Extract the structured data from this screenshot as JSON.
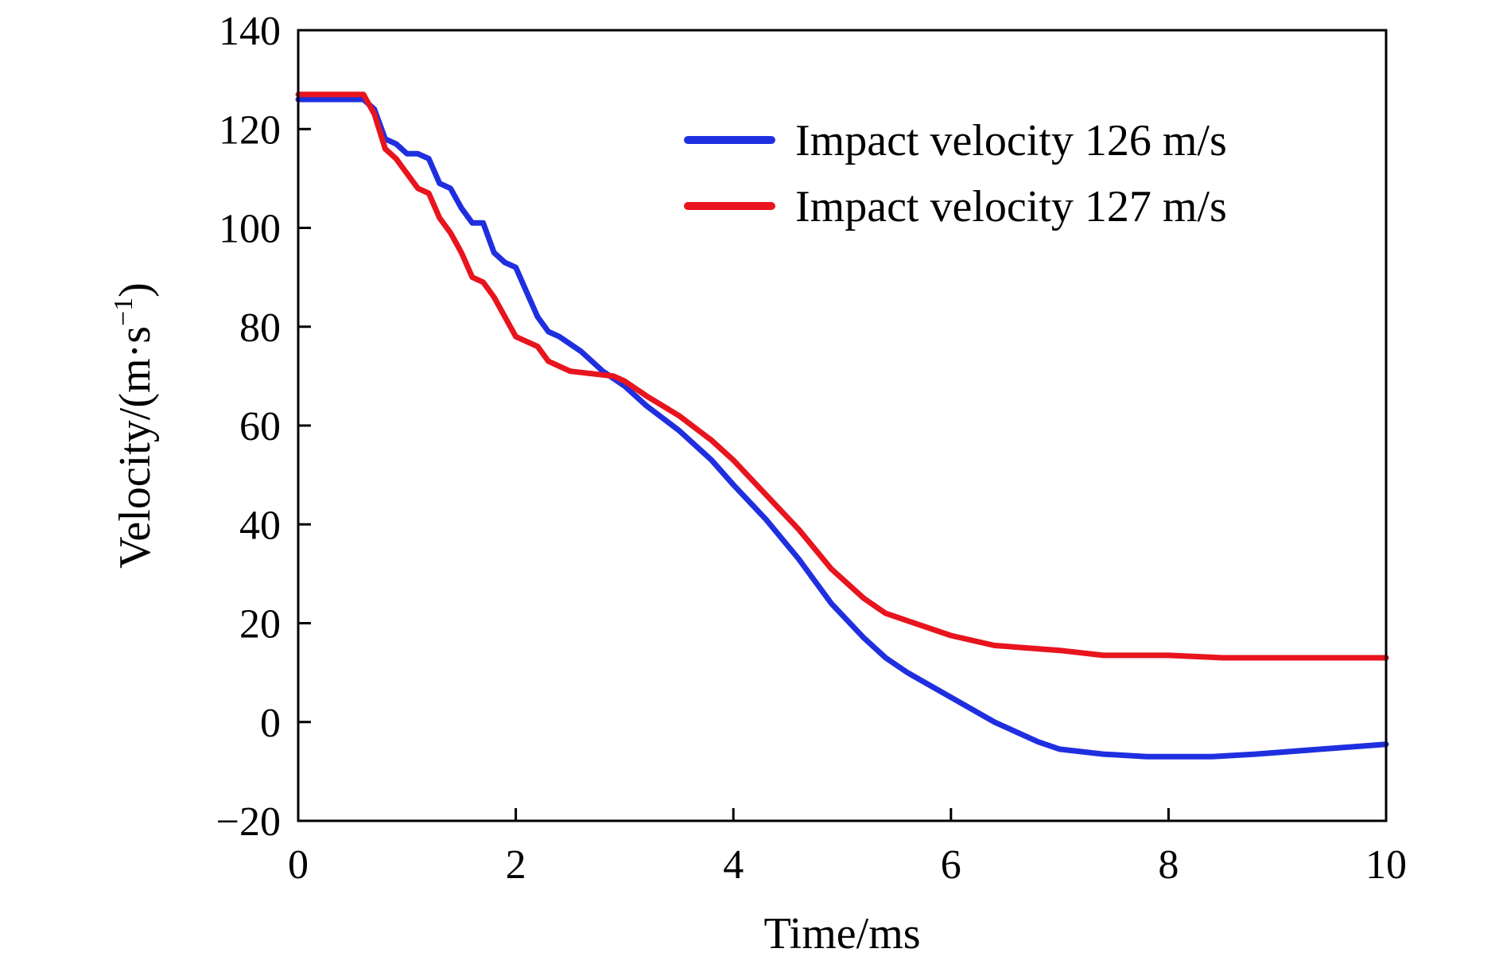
{
  "chart_data": {
    "type": "line",
    "xlabel": "Time/ms",
    "ylabel": "Velocity/(m·s",
    "ylabel_unit_exponent": "−1",
    "ylabel_close": ")",
    "xlim": [
      0,
      10
    ],
    "ylim": [
      -20,
      140
    ],
    "x_ticks": [
      "0",
      "2",
      "4",
      "6",
      "8",
      "10"
    ],
    "y_ticks": [
      "−20",
      "0",
      "20",
      "40",
      "60",
      "80",
      "100",
      "120",
      "140"
    ],
    "grid": false,
    "legend_position": "top-right",
    "series": [
      {
        "name": "Impact velocity 126 m/s",
        "color": "#1f2fe0",
        "points": [
          [
            0,
            126
          ],
          [
            0.6,
            126
          ],
          [
            0.7,
            124
          ],
          [
            0.8,
            118
          ],
          [
            0.9,
            117
          ],
          [
            1.0,
            115
          ],
          [
            1.1,
            115
          ],
          [
            1.2,
            114
          ],
          [
            1.3,
            109
          ],
          [
            1.4,
            108
          ],
          [
            1.5,
            104
          ],
          [
            1.6,
            101
          ],
          [
            1.7,
            101
          ],
          [
            1.8,
            95
          ],
          [
            1.9,
            93
          ],
          [
            2.0,
            92
          ],
          [
            2.1,
            87
          ],
          [
            2.2,
            82
          ],
          [
            2.3,
            79
          ],
          [
            2.4,
            78
          ],
          [
            2.6,
            75
          ],
          [
            2.8,
            71
          ],
          [
            3.0,
            68
          ],
          [
            3.2,
            64
          ],
          [
            3.5,
            59
          ],
          [
            3.8,
            53
          ],
          [
            4.0,
            48
          ],
          [
            4.3,
            41
          ],
          [
            4.6,
            33
          ],
          [
            4.9,
            24
          ],
          [
            5.2,
            17
          ],
          [
            5.4,
            13
          ],
          [
            5.6,
            10
          ],
          [
            6.0,
            5
          ],
          [
            6.4,
            0
          ],
          [
            6.8,
            -4
          ],
          [
            7.0,
            -5.5
          ],
          [
            7.4,
            -6.5
          ],
          [
            7.8,
            -7
          ],
          [
            8.4,
            -7
          ],
          [
            8.8,
            -6.5
          ],
          [
            9.4,
            -5.5
          ],
          [
            10.0,
            -4.5
          ]
        ]
      },
      {
        "name": "Impact velocity 127 m/s",
        "color": "#e8141e",
        "points": [
          [
            0,
            127
          ],
          [
            0.6,
            127
          ],
          [
            0.7,
            123
          ],
          [
            0.8,
            116
          ],
          [
            0.9,
            114
          ],
          [
            1.0,
            111
          ],
          [
            1.1,
            108
          ],
          [
            1.2,
            107
          ],
          [
            1.3,
            102
          ],
          [
            1.4,
            99
          ],
          [
            1.5,
            95
          ],
          [
            1.6,
            90
          ],
          [
            1.7,
            89
          ],
          [
            1.8,
            86
          ],
          [
            1.9,
            82
          ],
          [
            2.0,
            78
          ],
          [
            2.1,
            77
          ],
          [
            2.2,
            76
          ],
          [
            2.3,
            73
          ],
          [
            2.5,
            71
          ],
          [
            2.7,
            70.5
          ],
          [
            2.9,
            70
          ],
          [
            3.0,
            69
          ],
          [
            3.2,
            66
          ],
          [
            3.5,
            62
          ],
          [
            3.8,
            57
          ],
          [
            4.0,
            53
          ],
          [
            4.3,
            46
          ],
          [
            4.6,
            39
          ],
          [
            4.9,
            31
          ],
          [
            5.2,
            25
          ],
          [
            5.4,
            22
          ],
          [
            5.6,
            20.5
          ],
          [
            6.0,
            17.5
          ],
          [
            6.4,
            15.5
          ],
          [
            7.0,
            14.5
          ],
          [
            7.4,
            13.5
          ],
          [
            8.0,
            13.5
          ],
          [
            8.5,
            13
          ],
          [
            9.0,
            13
          ],
          [
            10.0,
            13
          ]
        ]
      }
    ]
  }
}
